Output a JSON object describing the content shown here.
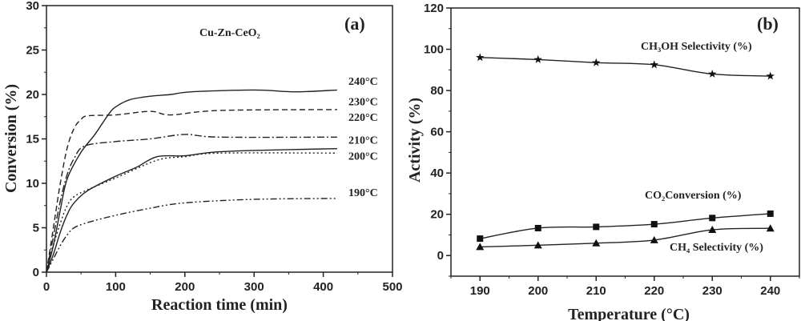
{
  "chart_data": [
    {
      "type": "line",
      "panel_label": "(a)",
      "title": "Cu-Zn-CeO₂",
      "xlabel": "Reaction time (min)",
      "ylabel": "Conversion (%)",
      "xlim": [
        0,
        500
      ],
      "ylim": [
        0,
        30
      ],
      "xticks": [
        0,
        100,
        200,
        300,
        400,
        500
      ],
      "yticks": [
        0,
        5,
        10,
        15,
        20,
        25,
        30
      ],
      "grid": false,
      "series": [
        {
          "name": "240°C",
          "style": "solid",
          "x": [
            0,
            10,
            20,
            30,
            50,
            70,
            90,
            100,
            120,
            150,
            180,
            210,
            300,
            360,
            420
          ],
          "y": [
            0,
            3,
            7,
            10.5,
            13.5,
            15.5,
            17.8,
            18.6,
            19.4,
            19.8,
            20,
            20.3,
            20.5,
            20.3,
            20.5
          ]
        },
        {
          "name": "230°C",
          "style": "dashed",
          "x": [
            0,
            10,
            20,
            30,
            40,
            50,
            60,
            100,
            150,
            180,
            250,
            420
          ],
          "y": [
            0,
            5,
            10,
            14,
            16.2,
            17.2,
            17.6,
            17.7,
            18.1,
            17.7,
            18.2,
            18.3
          ]
        },
        {
          "name": "220°C",
          "style": "dashdot",
          "x": [
            0,
            10,
            20,
            30,
            40,
            55,
            100,
            150,
            200,
            250,
            420
          ],
          "y": [
            0,
            4,
            8,
            11,
            12.8,
            14.2,
            14.7,
            15,
            15.5,
            15.2,
            15.2
          ]
        },
        {
          "name": "210°C",
          "style": "solid",
          "x": [
            0,
            10,
            20,
            30,
            40,
            60,
            100,
            130,
            160,
            200,
            240,
            300,
            420
          ],
          "y": [
            0,
            2,
            4.5,
            6.5,
            7.8,
            9.2,
            10.8,
            11.8,
            13,
            13.1,
            13.5,
            13.7,
            13.9
          ]
        },
        {
          "name": "200°C",
          "style": "dotted",
          "x": [
            0,
            10,
            20,
            30,
            40,
            60,
            100,
            160,
            200,
            250,
            420
          ],
          "y": [
            0,
            3,
            5.5,
            7.5,
            8.5,
            9.3,
            10.6,
            12.6,
            13,
            13.4,
            13.4
          ]
        },
        {
          "name": "190°C",
          "style": "dashdotdot",
          "x": [
            0,
            10,
            20,
            30,
            40,
            60,
            100,
            150,
            200,
            300,
            420
          ],
          "y": [
            0,
            1.5,
            3,
            4.2,
            5,
            5.6,
            6.4,
            7.2,
            7.8,
            8.2,
            8.3
          ]
        }
      ]
    },
    {
      "type": "line",
      "panel_label": "(b)",
      "xlabel": "Temperature (°C)",
      "ylabel": "Activity (%)",
      "xlim": [
        185,
        245
      ],
      "ylim": [
        -10,
        120
      ],
      "xticks": [
        190,
        200,
        210,
        220,
        230,
        240
      ],
      "yticks": [
        0,
        20,
        40,
        60,
        80,
        100,
        120
      ],
      "grid": false,
      "x": [
        190,
        200,
        210,
        220,
        230,
        240
      ],
      "series": [
        {
          "name": "CH₃OH Selectivity (%)",
          "marker": "star",
          "values": [
            96,
            95,
            93.5,
            92.5,
            88,
            87
          ]
        },
        {
          "name": "CO₂Conversion (%)",
          "marker": "square",
          "values": [
            8.2,
            13.3,
            13.9,
            15.2,
            18.2,
            20.3
          ]
        },
        {
          "name": "CH₄ Selectivity (%)",
          "marker": "triangle",
          "values": [
            4.2,
            5,
            6,
            7.5,
            12.5,
            13.2
          ]
        }
      ]
    }
  ]
}
